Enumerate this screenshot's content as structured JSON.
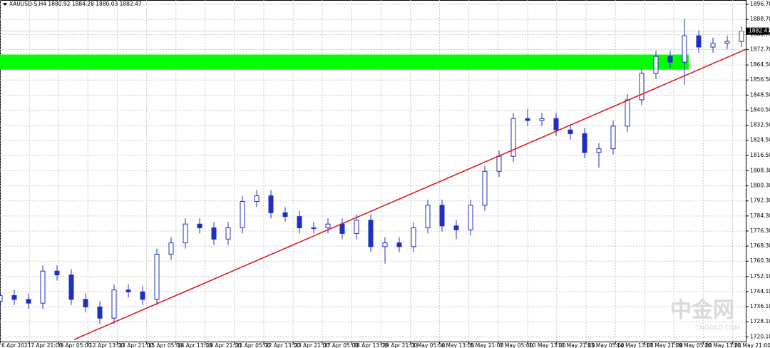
{
  "chart_data": {
    "type": "candlestick",
    "title": "XAUUSD-S,H4  1880.92 1884.28 1880.03 1882.47",
    "current_price": 1882.47,
    "up_color": "#ffffff",
    "down_color": "#1f2fbf",
    "wick_color": "#1f2fbf",
    "grid": true,
    "xlim": [
      0,
      261.5
    ],
    "ylim": [
      1717.2,
      1899
    ],
    "x": [
      0,
      5,
      10,
      15,
      20,
      25,
      30,
      35,
      40,
      45,
      50,
      55,
      60,
      65,
      70,
      75,
      80,
      85,
      90,
      95,
      100,
      105,
      110,
      115,
      120,
      125,
      130,
      135,
      140,
      145,
      150,
      155,
      160,
      165,
      170,
      175,
      180,
      185,
      190,
      195,
      200,
      205,
      210,
      215,
      220,
      225,
      230,
      235,
      240,
      245,
      250,
      255,
      260
    ],
    "open": [
      1739,
      1742,
      1740,
      1738,
      1755,
      1753,
      1740,
      1736,
      1730,
      1745,
      1744,
      1740,
      1764,
      1770,
      1780,
      1778,
      1772,
      1778,
      1792,
      1795,
      1786,
      1784,
      1778,
      1778,
      1780,
      1775,
      1782,
      1768,
      1770,
      1768,
      1778,
      1790,
      1779,
      1777,
      1790,
      1808,
      1816,
      1836,
      1835,
      1836,
      1830,
      1828,
      1818,
      1820,
      1832,
      1846,
      1860,
      1869,
      1866,
      1880,
      1874,
      1876,
      1877
    ],
    "high": [
      1745,
      1745,
      1743,
      1758,
      1758,
      1756,
      1743,
      1739,
      1748,
      1748,
      1747,
      1767,
      1773,
      1783,
      1783,
      1781,
      1781,
      1795,
      1798,
      1798,
      1789,
      1787,
      1781,
      1783,
      1783,
      1785,
      1785,
      1773,
      1773,
      1781,
      1793,
      1793,
      1782,
      1793,
      1811,
      1819,
      1839,
      1841,
      1839,
      1839,
      1833,
      1831,
      1823,
      1835,
      1849,
      1863,
      1872,
      1872,
      1889,
      1883,
      1879,
      1880,
      1885
    ],
    "low": [
      1736,
      1737,
      1735,
      1735,
      1750,
      1737,
      1733,
      1727,
      1727,
      1741,
      1737,
      1737,
      1761,
      1767,
      1775,
      1769,
      1769,
      1775,
      1789,
      1783,
      1781,
      1775,
      1775,
      1775,
      1772,
      1772,
      1765,
      1759,
      1765,
      1765,
      1775,
      1776,
      1772,
      1774,
      1787,
      1805,
      1813,
      1832,
      1832,
      1827,
      1825,
      1815,
      1810,
      1817,
      1829,
      1843,
      1857,
      1863,
      1854,
      1871,
      1871,
      1873,
      1874
    ],
    "close": [
      1742,
      1740,
      1738,
      1755,
      1753,
      1740,
      1736,
      1730,
      1745,
      1744,
      1740,
      1764,
      1770,
      1780,
      1778,
      1772,
      1778,
      1792,
      1795,
      1786,
      1784,
      1778,
      1778,
      1780,
      1775,
      1782,
      1768,
      1770,
      1768,
      1778,
      1790,
      1779,
      1777,
      1790,
      1808,
      1816,
      1836,
      1835,
      1836,
      1830,
      1828,
      1818,
      1820,
      1832,
      1846,
      1860,
      1869,
      1866,
      1880,
      1874,
      1876,
      1877,
      1882.47
    ],
    "zone": {
      "x": [
        0,
        241.5
      ],
      "low": 1862,
      "high": 1870,
      "color": "#00ff00"
    },
    "trendline": {
      "x": [
        26,
        261.5
      ],
      "y": [
        1718.7,
        1872.8
      ],
      "color": "#e01010"
    },
    "yticks": [
      {
        "value": 1896.7,
        "label": "1896.70"
      },
      {
        "value": 1888.7,
        "label": "1888.70"
      },
      {
        "value": 1880.7,
        "label": "1880.70"
      },
      {
        "value": 1872.7,
        "label": "1872.70"
      },
      {
        "value": 1864.5,
        "label": "1864.50"
      },
      {
        "value": 1856.5,
        "label": "1856.50"
      },
      {
        "value": 1848.5,
        "label": "1848.50"
      },
      {
        "value": 1840.5,
        "label": "1840.50"
      },
      {
        "value": 1832.5,
        "label": "1832.50"
      },
      {
        "value": 1824.5,
        "label": "1824.50"
      },
      {
        "value": 1816.5,
        "label": "1816.50"
      },
      {
        "value": 1808.3,
        "label": "1808.30"
      },
      {
        "value": 1800.3,
        "label": "1800.30"
      },
      {
        "value": 1792.3,
        "label": "1792.30"
      },
      {
        "value": 1784.3,
        "label": "1784.30"
      },
      {
        "value": 1776.3,
        "label": "1776.30"
      },
      {
        "value": 1768.3,
        "label": "1768.30"
      },
      {
        "value": 1760.3,
        "label": "1760.30"
      },
      {
        "value": 1752.1,
        "label": "1752.10"
      },
      {
        "value": 1744.1,
        "label": "1744.10"
      },
      {
        "value": 1736.1,
        "label": "1736.10"
      },
      {
        "value": 1728.1,
        "label": "1728.10"
      },
      {
        "value": 1720.1,
        "label": "1720.10"
      }
    ],
    "xticks": [
      {
        "value": 0,
        "label": "6 Apr 2021"
      },
      {
        "value": 10.3,
        "label": "7 Apr 21:00"
      },
      {
        "value": 20.6,
        "label": "9 Apr 05:00"
      },
      {
        "value": 30.8,
        "label": "12 Apr 13:00"
      },
      {
        "value": 41.1,
        "label": "13 Apr 21:00"
      },
      {
        "value": 51.4,
        "label": "15 Apr 05:00"
      },
      {
        "value": 61.7,
        "label": "16 Apr 13:00"
      },
      {
        "value": 71.9,
        "label": "19 Apr 21:00"
      },
      {
        "value": 82.2,
        "label": "21 Apr 05:00"
      },
      {
        "value": 92.5,
        "label": "22 Apr 13:00"
      },
      {
        "value": 102.8,
        "label": "23 Apr 21:00"
      },
      {
        "value": 113,
        "label": "27 Apr 05:00"
      },
      {
        "value": 123.3,
        "label": "28 Apr 13:00"
      },
      {
        "value": 133.6,
        "label": "29 Apr 21:00"
      },
      {
        "value": 143.9,
        "label": "3 May 05:00"
      },
      {
        "value": 154.1,
        "label": "4 May 13:00"
      },
      {
        "value": 164.4,
        "label": "5 May 21:00"
      },
      {
        "value": 174.7,
        "label": "7 May 05:00"
      },
      {
        "value": 185,
        "label": "10 May 13:00"
      },
      {
        "value": 195.2,
        "label": "11 May 21:00"
      },
      {
        "value": 205.5,
        "label": "13 May 05:00"
      },
      {
        "value": 215.8,
        "label": "14 May 13:00"
      },
      {
        "value": 226.1,
        "label": "17 May 21:00"
      },
      {
        "value": 236.3,
        "label": "19 May 05:00"
      },
      {
        "value": 246.6,
        "label": "20 May 13:00"
      },
      {
        "value": 256.9,
        "label": "21 May 21:00"
      }
    ],
    "watermark": "中金网",
    "watermark_sub": "CNGOLD.COM"
  }
}
